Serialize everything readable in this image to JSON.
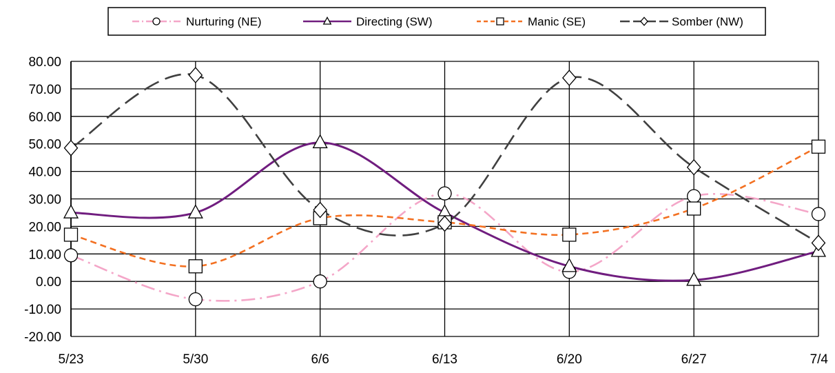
{
  "chart_data": {
    "type": "line",
    "smooth": true,
    "categories": [
      "5/23",
      "5/30",
      "6/6",
      "6/13",
      "6/20",
      "6/27",
      "7/4"
    ],
    "ylim": [
      -20,
      80
    ],
    "ytick_step": 10,
    "ytick_format": "0.00",
    "grid": true,
    "legend_position": "top",
    "series": [
      {
        "name": "Nurturing (NE)",
        "values": [
          9.5,
          -6.5,
          0.0,
          32.0,
          3.5,
          31.0,
          24.5
        ],
        "color": "#f4a6c8",
        "dash": "dashdot",
        "marker": "circle"
      },
      {
        "name": "Directing (SW)",
        "values": [
          25.0,
          25.0,
          50.5,
          25.0,
          5.5,
          0.5,
          11.0
        ],
        "color": "#701d7f",
        "dash": "solid",
        "marker": "triangle"
      },
      {
        "name": "Manic (SE)",
        "values": [
          17.0,
          5.5,
          23.0,
          21.5,
          17.0,
          26.5,
          49.0
        ],
        "color": "#f37021",
        "dash": "dash",
        "marker": "square"
      },
      {
        "name": "Somber (NW)",
        "values": [
          48.5,
          75.0,
          26.0,
          21.0,
          74.0,
          41.5,
          14.0
        ],
        "color": "#404040",
        "dash": "longdash",
        "marker": "diamond"
      }
    ]
  }
}
